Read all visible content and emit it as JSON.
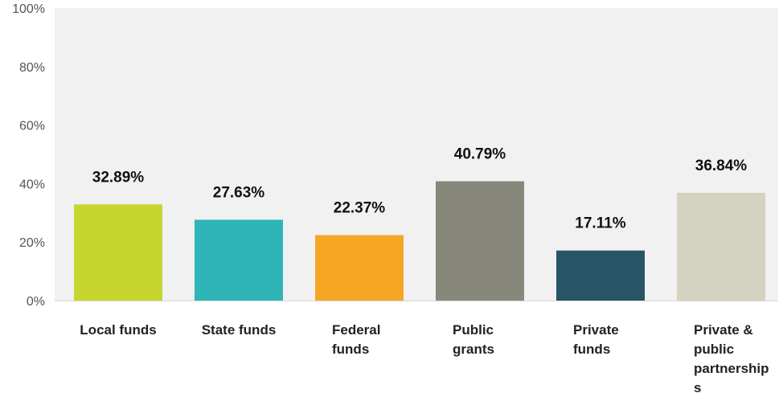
{
  "chart_data": {
    "type": "bar",
    "categories": [
      "Local funds",
      "State funds",
      "Federal funds",
      "Public grants",
      "Private funds",
      "Private & public partnerships"
    ],
    "category_label_lines": [
      [
        "Local funds"
      ],
      [
        "State funds"
      ],
      [
        "Federal",
        "funds"
      ],
      [
        "Public",
        "grants"
      ],
      [
        "Private",
        "funds"
      ],
      [
        "Private &",
        "public",
        "partnership",
        "s"
      ]
    ],
    "values": [
      32.89,
      27.63,
      22.37,
      40.79,
      17.11,
      36.84
    ],
    "value_labels": [
      "32.89%",
      "27.63%",
      "22.37%",
      "40.79%",
      "17.11%",
      "36.84%"
    ],
    "bar_colors": [
      "#c6d530",
      "#2fb5b7",
      "#f6a623",
      "#87877b",
      "#275466",
      "#d4d2c1"
    ],
    "ylim": [
      0,
      100
    ],
    "yticks": [
      0,
      20,
      40,
      60,
      80,
      100
    ],
    "ytick_labels": [
      "0%",
      "20%",
      "40%",
      "60%",
      "80%",
      "100%"
    ],
    "plot_background": "#f1f1f1",
    "grid": false,
    "title": "",
    "xlabel": "",
    "ylabel": ""
  }
}
